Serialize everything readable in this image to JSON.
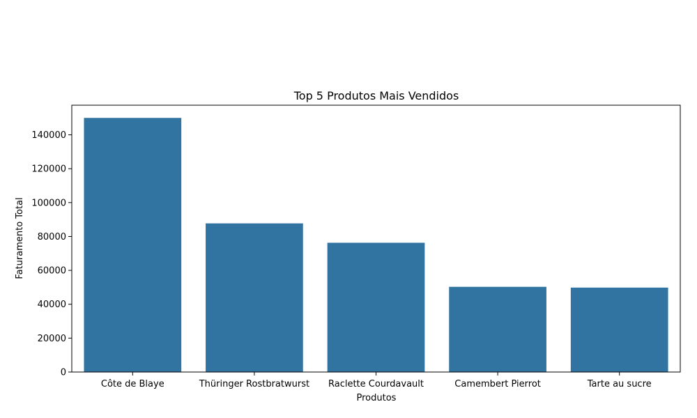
{
  "chart_data": {
    "type": "bar",
    "title": "Top 5 Produtos Mais Vendidos",
    "xlabel": "Produtos",
    "ylabel": "Faturamento Total",
    "categories": [
      "Côte de Blaye",
      "Thüringer Rostbratwurst",
      "Raclette Courdavault",
      "Camembert Pierrot",
      "Tarte au sucre"
    ],
    "values": [
      149984,
      87736,
      76296,
      50286,
      49828
    ],
    "ylim": [
      0,
      157483
    ],
    "yticks": [
      0,
      20000,
      40000,
      60000,
      80000,
      100000,
      120000,
      140000
    ],
    "ytick_labels": [
      "0",
      "20000",
      "40000",
      "60000",
      "80000",
      "100000",
      "120000",
      "140000"
    ],
    "bar_color": "#3274a1",
    "grid": false,
    "legend": false
  }
}
